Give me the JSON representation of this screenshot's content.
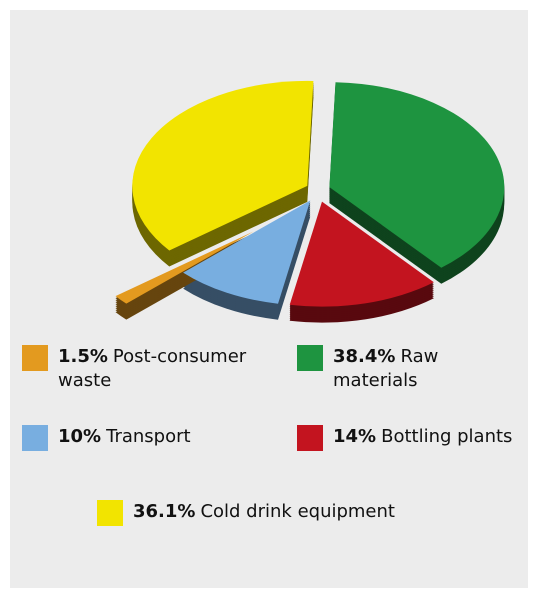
{
  "chart_data": {
    "type": "pie",
    "categories": [
      "Post-consumer waste",
      "Raw materials",
      "Transport",
      "Bottling plants",
      "Cold drink equipment"
    ],
    "values": [
      1.5,
      38.4,
      10,
      14,
      36.1
    ],
    "value_labels": [
      "1.5%",
      "38.4%",
      "10%",
      "14%",
      "36.1%"
    ],
    "colors": [
      "#e39a1f",
      "#1e9440",
      "#78aee0",
      "#c3141f",
      "#f2e400"
    ]
  }
}
